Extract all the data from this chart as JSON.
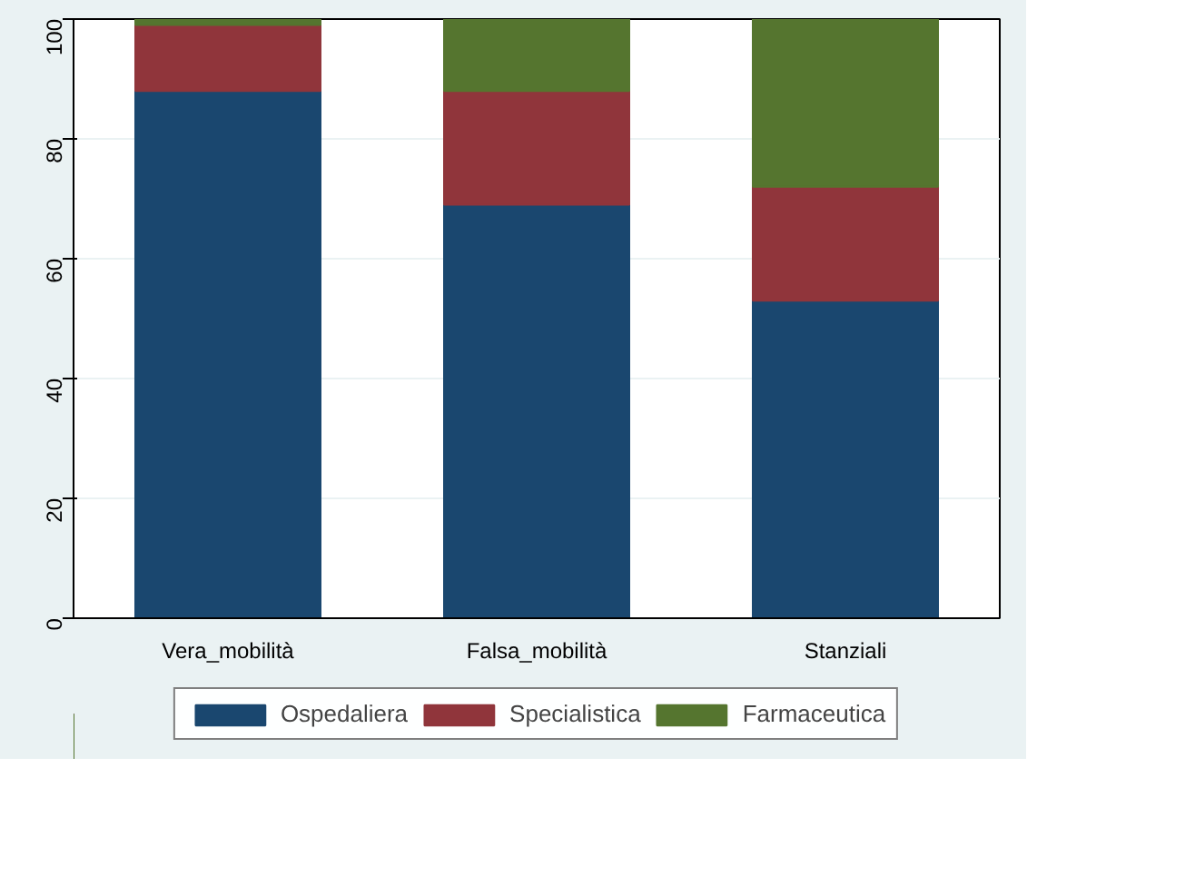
{
  "chart_data": {
    "type": "bar",
    "stacked": true,
    "categories": [
      "Vera_mobilità",
      "Falsa_mobilità",
      "Stanziali"
    ],
    "series": [
      {
        "name": "Ospedaliera",
        "color": "#1a476f",
        "values": [
          88,
          69,
          53
        ]
      },
      {
        "name": "Specialistica",
        "color": "#90353b",
        "values": [
          11,
          19,
          19
        ]
      },
      {
        "name": "Farmaceutica",
        "color": "#55752f",
        "values": [
          1,
          12,
          28
        ]
      }
    ],
    "ylim": [
      0,
      100
    ],
    "yticks": [
      0,
      20,
      40,
      60,
      80,
      100
    ],
    "grid": "y",
    "legend": "bottom"
  }
}
